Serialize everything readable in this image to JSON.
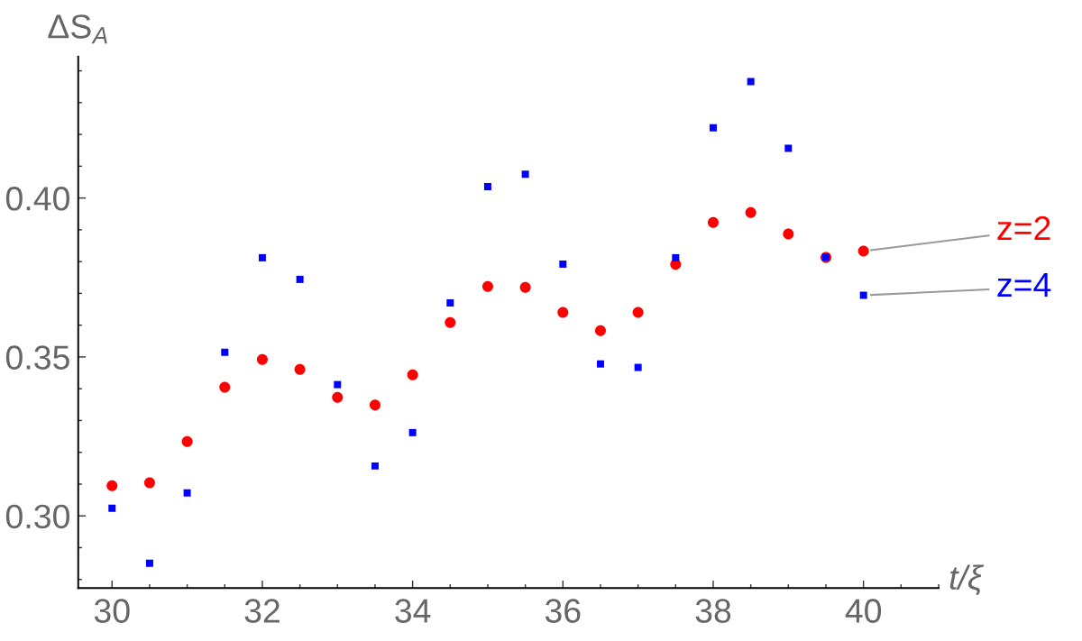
{
  "chart_data": {
    "type": "scatter",
    "xlabel": "t/ξ",
    "ylabel": "ΔS$_{A}$",
    "x": [
      30,
      30.5,
      31,
      31.5,
      32,
      32.5,
      33,
      33.5,
      34,
      34.5,
      35,
      35.5,
      36,
      36.5,
      37,
      37.5,
      38,
      38.5,
      39,
      39.5,
      40
    ],
    "series": [
      {
        "name": "z=2",
        "color": "#ff0000",
        "marker": "circle",
        "values": [
          0.3095,
          0.3104,
          0.3234,
          0.3405,
          0.3492,
          0.3461,
          0.3373,
          0.3349,
          0.3444,
          0.3608,
          0.3722,
          0.3719,
          0.364,
          0.3583,
          0.364,
          0.3791,
          0.3923,
          0.3954,
          0.3887,
          0.3813,
          0.3833
        ]
      },
      {
        "name": "z=4",
        "color": "#0000ff",
        "marker": "square",
        "values": [
          0.3024,
          0.2851,
          0.3072,
          0.3515,
          0.3812,
          0.3744,
          0.3413,
          0.3157,
          0.3262,
          0.367,
          0.4036,
          0.4075,
          0.3792,
          0.3478,
          0.3467,
          0.3812,
          0.4221,
          0.4366,
          0.4156,
          0.3814,
          0.3694
        ]
      }
    ],
    "xlim": [
      29.55,
      41.0
    ],
    "ylim": [
      0.2773,
      0.4445
    ],
    "xticks": [
      30,
      {
        "value": 30.5,
        "label": null
      },
      {
        "value": 31,
        "label": null
      },
      {
        "value": 31.5,
        "label": null
      },
      32,
      {
        "value": 32.5,
        "label": null
      },
      {
        "value": 33,
        "label": null
      },
      {
        "value": 33.5,
        "label": null
      },
      34,
      {
        "value": 34.5,
        "label": null
      },
      {
        "value": 35,
        "label": null
      },
      {
        "value": 35.5,
        "label": null
      },
      36,
      {
        "value": 36.5,
        "label": null
      },
      {
        "value": 37,
        "label": null
      },
      {
        "value": 37.5,
        "label": null
      },
      38,
      {
        "value": 38.5,
        "label": null
      },
      {
        "value": 39,
        "label": null
      },
      {
        "value": 39.5,
        "label": null
      },
      40,
      {
        "value": 40.5,
        "label": null
      },
      {
        "value": 41,
        "label": null
      }
    ],
    "yticks": [
      {
        "value": 0.28,
        "label": null
      },
      {
        "value": 0.29,
        "label": null
      },
      {
        "value": 0.3,
        "label": "0.30"
      },
      {
        "value": 0.31,
        "label": null
      },
      {
        "value": 0.32,
        "label": null
      },
      {
        "value": 0.33,
        "label": null
      },
      {
        "value": 0.34,
        "label": null
      },
      0.35,
      {
        "value": 0.36,
        "label": null
      },
      {
        "value": 0.37,
        "label": null
      },
      {
        "value": 0.38,
        "label": null
      },
      {
        "value": 0.39,
        "label": null
      },
      {
        "value": 0.4,
        "label": "0.40"
      },
      {
        "value": 0.41,
        "label": null
      },
      {
        "value": 0.42,
        "label": null
      },
      {
        "value": 0.43,
        "label": null
      },
      {
        "value": 0.44,
        "label": null
      }
    ]
  }
}
